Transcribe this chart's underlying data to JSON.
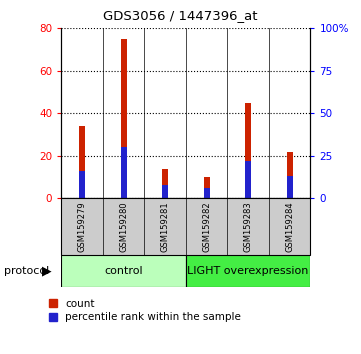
{
  "title": "GDS3056 / 1447396_at",
  "samples": [
    "GSM159279",
    "GSM159280",
    "GSM159281",
    "GSM159282",
    "GSM159283",
    "GSM159284"
  ],
  "count_values": [
    34,
    75,
    14,
    10,
    45,
    22
  ],
  "percentile_values": [
    16,
    30,
    8,
    6,
    22,
    13
  ],
  "left_ylim": [
    0,
    80
  ],
  "right_ylim": [
    0,
    100
  ],
  "left_yticks": [
    0,
    20,
    40,
    60,
    80
  ],
  "right_yticks": [
    0,
    25,
    50,
    75,
    100
  ],
  "right_yticklabels": [
    "0",
    "25",
    "50",
    "75",
    "100%"
  ],
  "bar_color_red": "#cc2200",
  "bar_color_blue": "#2222cc",
  "control_label": "control",
  "overexpression_label": "LIGHT overexpression",
  "protocol_label": "protocol",
  "control_bg": "#bbffbb",
  "overexpression_bg": "#44ee44",
  "legend_count": "count",
  "legend_percentile": "percentile rank within the sample",
  "bar_width": 0.15,
  "label_bg": "#cccccc",
  "n_control": 3,
  "n_over": 3
}
